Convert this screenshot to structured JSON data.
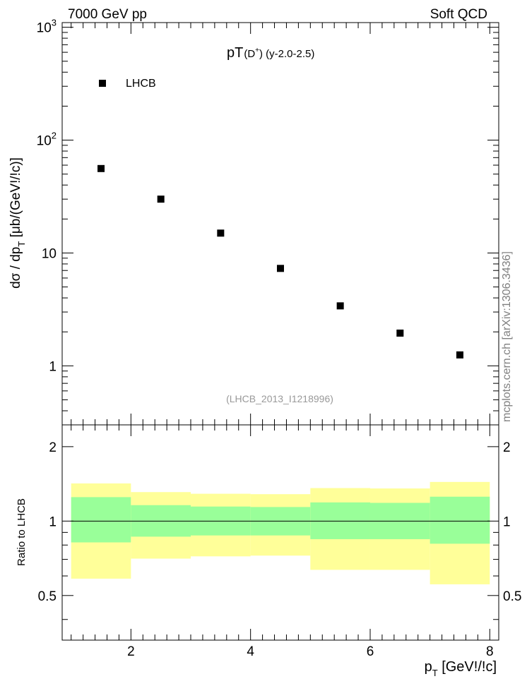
{
  "header": {
    "left": "7000 GeV pp",
    "right": "Soft QCD"
  },
  "side_label": "mcplots.cern.ch [arXiv:1306.3436]",
  "analysis_id": "(LHCB_2013_I1218996)",
  "colors": {
    "marker": "#000000",
    "band_outer": "#ffff99",
    "band_inner": "#99ff99",
    "analysis_text": "#999999",
    "side_text": "#808080"
  },
  "chart_data": [
    {
      "type": "scatter",
      "title": {
        "main": "pT",
        "sub": "(D",
        "sup": "+",
        "tail": ") (y-2.0-2.5)"
      },
      "ylabel": "dσ / dp_T [μb/(GeV!/!c)]",
      "yscale": "log",
      "xlim": [
        0.85,
        8.15
      ],
      "ylim": [
        0.3,
        1100
      ],
      "legend": {
        "label": "LHCB",
        "location": "top-left"
      },
      "yticks": [
        {
          "value": 1,
          "base": "1",
          "exp": ""
        },
        {
          "value": 10,
          "base": "10",
          "exp": ""
        },
        {
          "value": 100,
          "base": "10",
          "exp": "2"
        },
        {
          "value": 1000,
          "base": "10",
          "exp": "3"
        }
      ],
      "series": [
        {
          "name": "LHCB",
          "x": [
            1.5,
            2.5,
            3.5,
            4.5,
            5.5,
            6.5,
            7.5
          ],
          "y": [
            56,
            30,
            15,
            7.3,
            3.4,
            1.95,
            1.25
          ]
        }
      ]
    },
    {
      "type": "area",
      "ylabel": "Ratio to LHCB",
      "xlabel": "p_T [GeV!/!c]",
      "xlim": [
        0.85,
        8.15
      ],
      "ylim": [
        0.33,
        2.45
      ],
      "reference_line": 1,
      "xticks": [
        2,
        4,
        6,
        8
      ],
      "yticks": [
        0.5,
        1,
        2
      ],
      "bins": [
        {
          "lo": 1,
          "hi": 2,
          "inner": [
            0.82,
            1.25
          ],
          "outer": [
            0.585,
            1.42
          ]
        },
        {
          "lo": 2,
          "hi": 3,
          "inner": [
            0.865,
            1.16
          ],
          "outer": [
            0.705,
            1.31
          ]
        },
        {
          "lo": 3,
          "hi": 4,
          "inner": [
            0.875,
            1.145
          ],
          "outer": [
            0.72,
            1.29
          ]
        },
        {
          "lo": 4,
          "hi": 5,
          "inner": [
            0.875,
            1.14
          ],
          "outer": [
            0.725,
            1.285
          ]
        },
        {
          "lo": 5,
          "hi": 6,
          "inner": [
            0.845,
            1.19
          ],
          "outer": [
            0.635,
            1.36
          ]
        },
        {
          "lo": 6,
          "hi": 7,
          "inner": [
            0.845,
            1.185
          ],
          "outer": [
            0.635,
            1.355
          ]
        },
        {
          "lo": 7,
          "hi": 8,
          "inner": [
            0.81,
            1.255
          ],
          "outer": [
            0.555,
            1.44
          ]
        }
      ]
    }
  ]
}
